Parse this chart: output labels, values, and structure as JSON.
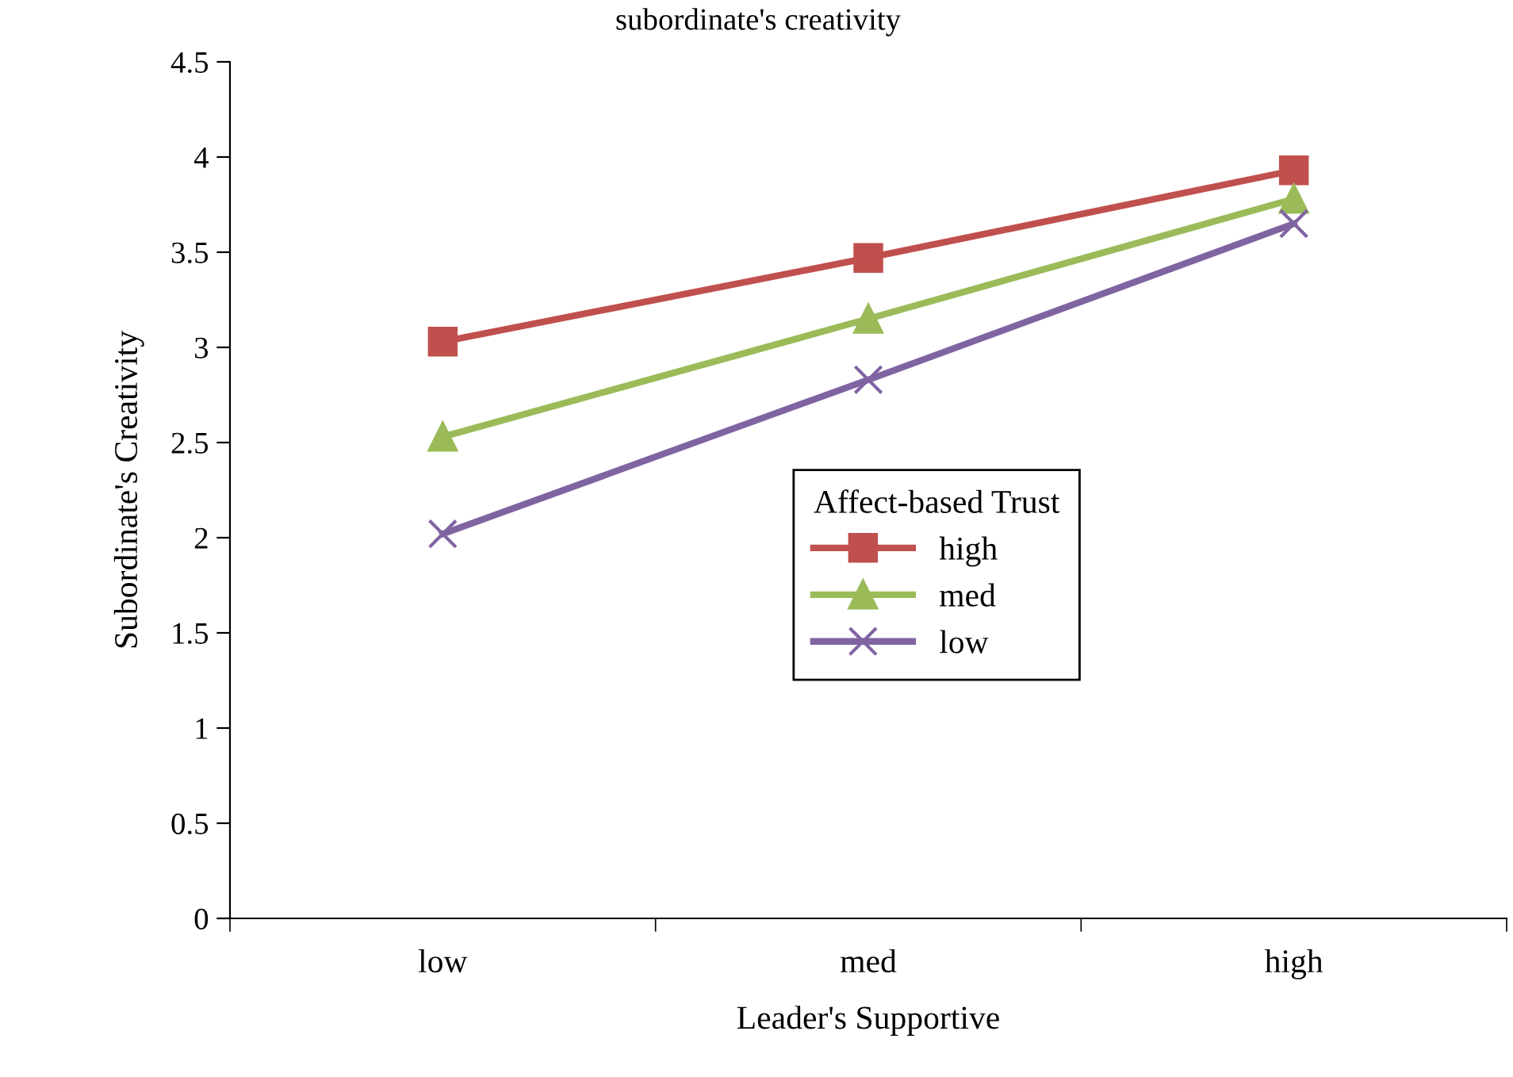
{
  "chart_data": {
    "type": "line",
    "title": "subordinate's creativity",
    "xlabel": "Leader's Supportive",
    "ylabel": "Subordinate's Creativity",
    "legend_title": "Affect-based Trust",
    "categories": [
      "low",
      "med",
      "high"
    ],
    "series": [
      {
        "name": "high",
        "color": "#c0504d",
        "marker": "square",
        "values": [
          3.03,
          3.47,
          3.93
        ]
      },
      {
        "name": "med",
        "color": "#9bbb59",
        "marker": "triangle",
        "values": [
          2.53,
          3.15,
          3.78
        ]
      },
      {
        "name": "low",
        "color": "#8064a2",
        "marker": "cross",
        "values": [
          2.02,
          2.83,
          3.65
        ]
      }
    ],
    "ylim": [
      0,
      4.5
    ],
    "yticks": [
      0,
      0.5,
      1,
      1.5,
      2,
      2.5,
      3,
      3.5,
      4,
      4.5
    ],
    "grid": false,
    "legend": "bottom right",
    "line_style": "solid"
  }
}
